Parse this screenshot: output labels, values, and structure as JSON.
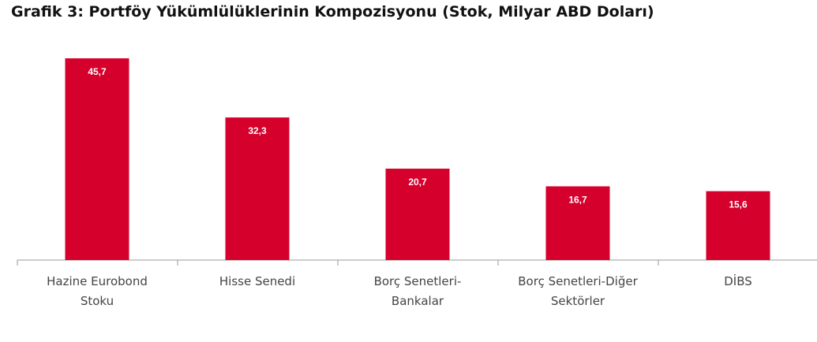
{
  "title": "Grafik 3: Portföy Yükümlülüklerinin Kompozisyonu (Stok, Milyar ABD Doları)",
  "colors": {
    "bar": "#d5002c",
    "axis": "#9a9a9a",
    "label_text": "#ffffff",
    "category_text": "#444444"
  },
  "chart_data": {
    "type": "bar",
    "title": "Grafik 3: Portföy Yükümlülüklerinin Kompozisyonu (Stok, Milyar ABD Doları)",
    "xlabel": "",
    "ylabel": "",
    "grid": false,
    "legend": "none",
    "ylim": [
      0,
      50
    ],
    "categories": [
      [
        "Hazine Eurobond",
        "Stoku"
      ],
      [
        "Hisse Senedi"
      ],
      [
        "Borç Senetleri-",
        "Bankalar"
      ],
      [
        "Borç Senetleri-Diğer",
        "Sektörler"
      ],
      [
        "DİBS"
      ]
    ],
    "values": [
      45.7,
      32.3,
      20.7,
      16.7,
      15.6
    ],
    "data_labels": [
      "45,7",
      "32,3",
      "20,7",
      "16,7",
      "15,6"
    ]
  }
}
